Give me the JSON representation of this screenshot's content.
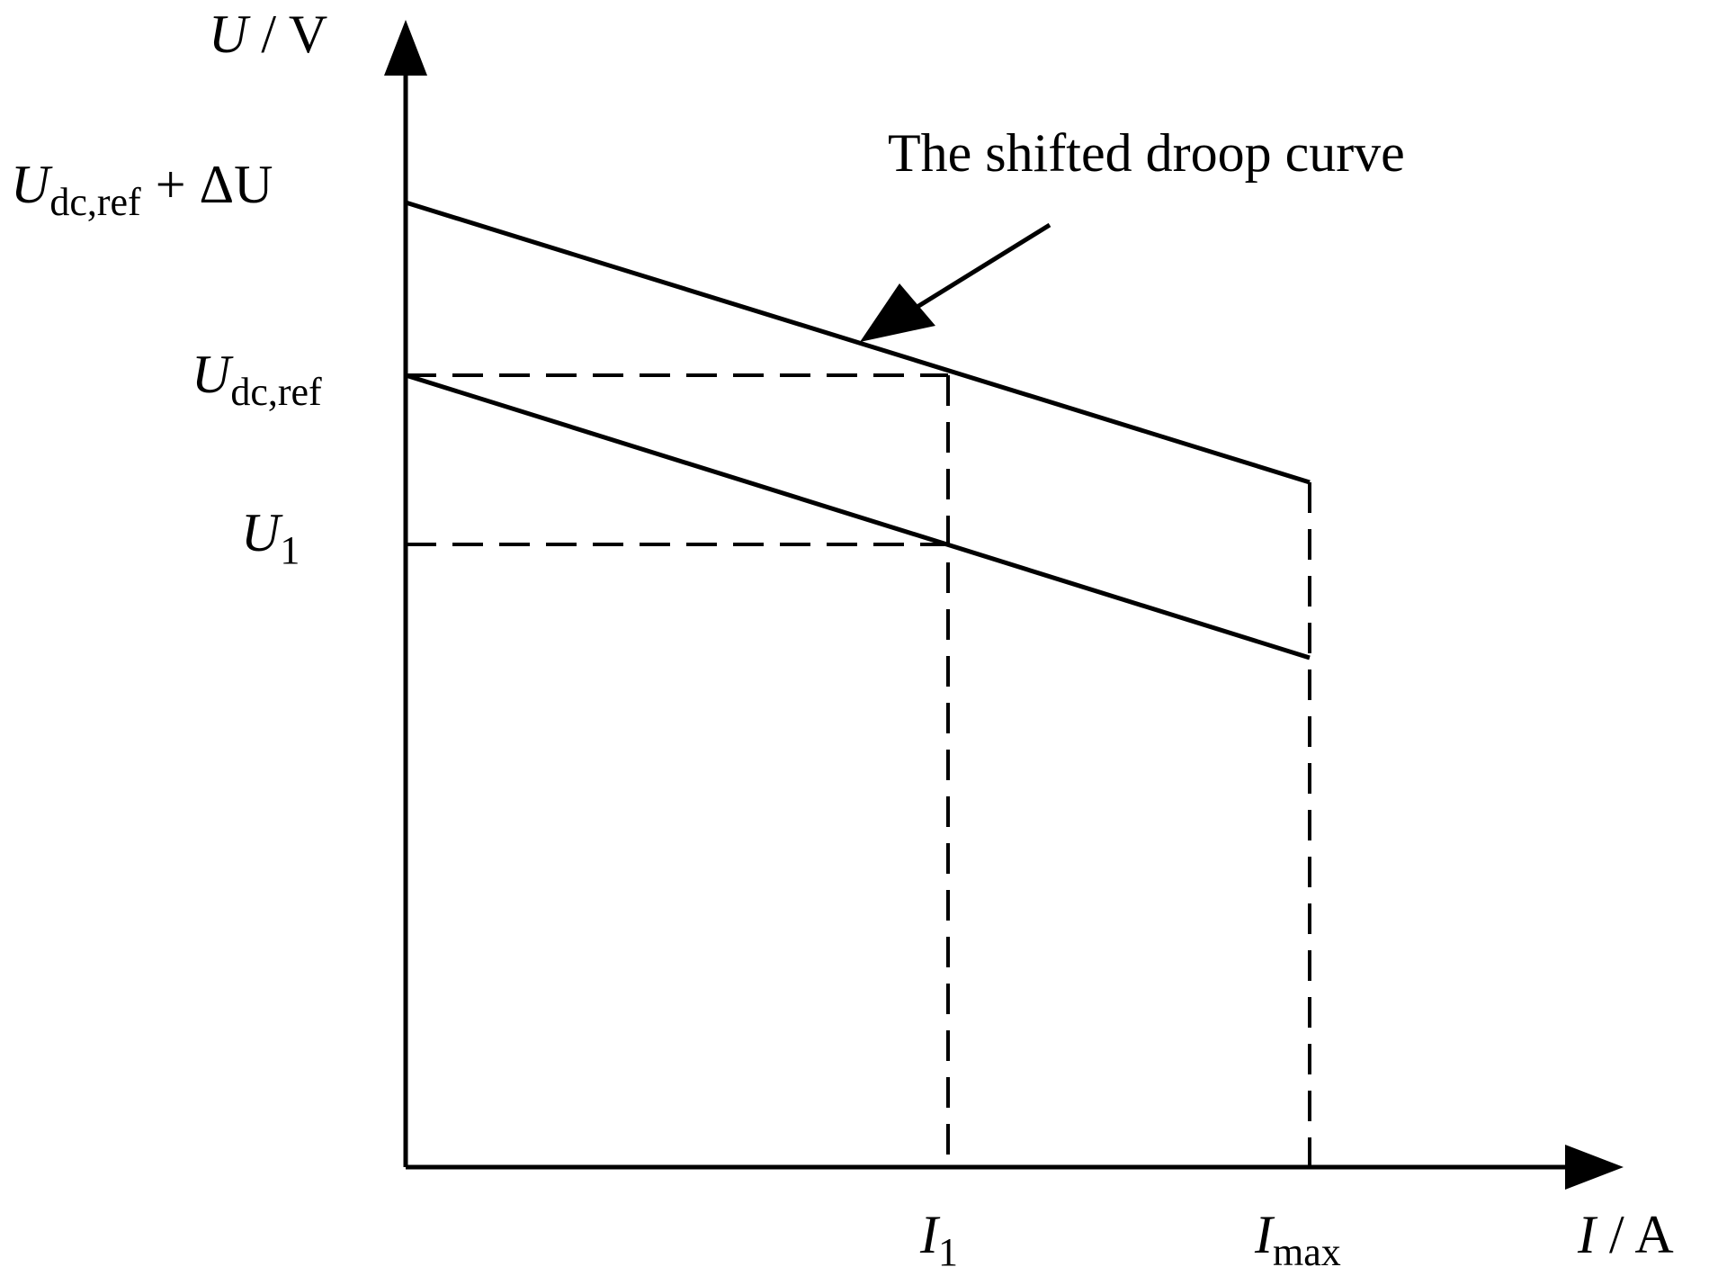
{
  "axes": {
    "y": {
      "symbol": "U",
      "unit": "/ V"
    },
    "x": {
      "symbol": "I",
      "unit": "/ A"
    }
  },
  "y_labels": [
    {
      "symbol": "U",
      "subscript": "dc,ref",
      "suffix": "+ ΔU"
    },
    {
      "symbol": "U",
      "subscript": "dc,ref"
    },
    {
      "symbol": "U",
      "subscript": "1"
    }
  ],
  "x_labels": [
    {
      "symbol": "I",
      "subscript": "1"
    },
    {
      "symbol": "I",
      "subscript": "max"
    }
  ],
  "annotation": "The shifted droop curve"
}
